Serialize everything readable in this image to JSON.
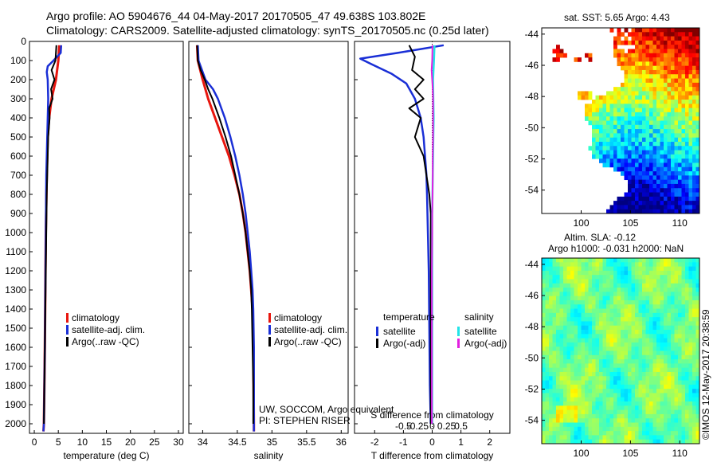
{
  "header": {
    "line1": "Argo profile: AO 5904676_44 04-May-2017 20170505_47 49.638S 103.802E",
    "line2": "Climatology: CARS2009. Satellite-adjusted climatology: synTS_20170505.nc (0.25d later)"
  },
  "colors": {
    "climatology": "#e8160e",
    "satellite": "#1a2fd6",
    "argo": "#000000",
    "sal_sat": "#22e4e8",
    "sal_argo": "#e21fe0"
  },
  "chart_data": [
    {
      "id": "temperature",
      "type": "line",
      "xlabel": "temperature (deg C)",
      "ylabel": "",
      "xlim": [
        -1,
        31
      ],
      "ylim": [
        2050,
        0
      ],
      "xticks": [
        "0",
        "5",
        "10",
        "15",
        "20",
        "25",
        "30"
      ],
      "xtick_values": [
        0,
        5,
        10,
        15,
        20,
        25,
        30
      ],
      "yticks": [
        "0",
        "100",
        "200",
        "300",
        "400",
        "500",
        "600",
        "700",
        "800",
        "900",
        "1000",
        "1100",
        "1200",
        "1300",
        "1400",
        "1500",
        "1600",
        "1700",
        "1800",
        "1900",
        "2000"
      ],
      "ytick_values": [
        0,
        100,
        200,
        300,
        400,
        500,
        600,
        700,
        800,
        900,
        1000,
        1100,
        1200,
        1300,
        1400,
        1500,
        1600,
        1700,
        1800,
        1900,
        2000
      ],
      "legend": [
        "climatology",
        "satellite-adj. clim.",
        "Argo(..raw -QC)"
      ],
      "series": [
        {
          "name": "climatology",
          "color_key": "climatology",
          "depth": [
            20,
            100,
            200,
            300,
            400,
            500,
            700,
            1000,
            1300,
            1600,
            2000,
            2040
          ],
          "values": [
            5.2,
            5.0,
            4.5,
            3.6,
            3.1,
            2.8,
            2.6,
            2.4,
            2.3,
            2.2,
            2.0,
            1.9
          ]
        },
        {
          "name": "satellite-adj. clim.",
          "color_key": "satellite",
          "depth": [
            20,
            60,
            100,
            130,
            160,
            200,
            300,
            500,
            700,
            1000,
            1300,
            1600,
            2000,
            2040
          ],
          "values": [
            5.6,
            5.5,
            4.0,
            2.8,
            2.6,
            2.8,
            2.9,
            2.7,
            2.5,
            2.4,
            2.3,
            2.2,
            2.0,
            1.9
          ]
        },
        {
          "name": "Argo(..raw -QC)",
          "color_key": "argo",
          "depth": [
            20,
            100,
            150,
            200,
            250,
            300,
            350,
            400,
            500,
            600,
            700,
            800,
            1000,
            1200,
            1400,
            1600,
            1800,
            2000
          ],
          "values": [
            4.6,
            4.4,
            3.6,
            4.2,
            3.5,
            3.8,
            3.1,
            3.2,
            2.9,
            2.8,
            2.7,
            2.6,
            2.5,
            2.4,
            2.3,
            2.2,
            2.1,
            2.0
          ]
        }
      ]
    },
    {
      "id": "salinity",
      "type": "line",
      "xlabel": "salinity",
      "xlim": [
        33.8,
        36.1
      ],
      "ylim": [
        2050,
        0
      ],
      "xticks": [
        "34",
        "34.5",
        "35",
        "35.5",
        "36"
      ],
      "xtick_values": [
        34,
        34.5,
        35,
        35.5,
        36
      ],
      "legend": [
        "climatology",
        "satellite-adj. clim.",
        "Argo(..raw -QC)"
      ],
      "series": [
        {
          "name": "climatology",
          "color_key": "climatology",
          "depth": [
            20,
            100,
            200,
            300,
            400,
            500,
            600,
            700,
            800,
            900,
            1000,
            1100,
            1200,
            1300,
            1400,
            1600,
            2000,
            2040
          ],
          "values": [
            33.92,
            33.93,
            34.0,
            34.08,
            34.18,
            34.28,
            34.38,
            34.46,
            34.53,
            34.58,
            34.62,
            34.65,
            34.68,
            34.7,
            34.72,
            34.73,
            34.74,
            34.74
          ]
        },
        {
          "name": "satellite-adj. clim.",
          "color_key": "satellite",
          "depth": [
            20,
            100,
            200,
            250,
            300,
            400,
            500,
            600,
            700,
            800,
            900,
            1000,
            1100,
            1200,
            1300,
            1400,
            1600,
            2000,
            2040
          ],
          "values": [
            33.93,
            33.94,
            34.04,
            34.15,
            34.22,
            34.32,
            34.4,
            34.47,
            34.53,
            34.58,
            34.62,
            34.65,
            34.68,
            34.7,
            34.72,
            34.73,
            34.74,
            34.74,
            34.74
          ]
        },
        {
          "name": "Argo(..raw -QC)",
          "color_key": "argo",
          "depth": [
            20,
            100,
            150,
            200,
            250,
            300,
            400,
            500,
            600,
            700,
            800,
            900,
            1000,
            1100,
            1200,
            1300,
            1400,
            1600,
            1800,
            2000
          ],
          "values": [
            33.92,
            33.93,
            33.97,
            34.03,
            34.08,
            34.14,
            34.24,
            34.33,
            34.41,
            34.47,
            34.53,
            34.58,
            34.62,
            34.65,
            34.68,
            34.7,
            34.71,
            34.72,
            34.73,
            34.73
          ]
        }
      ]
    },
    {
      "id": "differences",
      "type": "line",
      "xlabel": "T difference from climatology",
      "top_xlabel": "S difference from climatology",
      "xlim": [
        -2.7,
        2.7
      ],
      "ylim": [
        2050,
        0
      ],
      "xticks": [
        "-2",
        "-1",
        "0",
        "1",
        "2"
      ],
      "xtick_values": [
        -2,
        -1,
        0,
        1,
        2
      ],
      "top_xticks": [
        "-0.5",
        "-0.25",
        "0",
        "0.25",
        "0.5"
      ],
      "legend_titles": [
        "temperature",
        "salinity"
      ],
      "legend": [
        "satellite",
        "Argo(-adj)",
        "satellite",
        "Argo(-adj)"
      ],
      "series": [
        {
          "name": "T satellite",
          "color_key": "satellite",
          "depth": [
            20,
            60,
            90,
            120,
            170,
            220,
            300,
            400,
            500,
            600,
            700,
            800,
            1000,
            1200,
            1500,
            1800,
            2000
          ],
          "values": [
            0.4,
            -1.2,
            -2.5,
            -2.1,
            -1.4,
            -0.9,
            -0.6,
            -0.4,
            -0.3,
            -0.25,
            -0.2,
            -0.18,
            -0.15,
            -0.12,
            -0.1,
            -0.08,
            -0.05
          ]
        },
        {
          "name": "T Argo(-adj)",
          "color_key": "argo",
          "depth": [
            20,
            80,
            150,
            200,
            250,
            300,
            350,
            400,
            500,
            600,
            700,
            800,
            900,
            1000,
            1200,
            1500,
            1800,
            2000
          ],
          "values": [
            -0.8,
            -0.6,
            -0.7,
            -0.3,
            -0.6,
            -0.3,
            -0.8,
            -0.4,
            -0.6,
            -0.3,
            -0.2,
            -0.1,
            -0.05,
            -0.05,
            -0.05,
            -0.05,
            -0.05,
            -0.05
          ]
        },
        {
          "name": "S satellite",
          "color_key": "sal_sat",
          "depth": [
            20,
            100,
            200,
            300,
            400,
            500,
            600,
            700,
            800,
            900,
            1000,
            1200,
            1500,
            2000
          ],
          "values": [
            0.08,
            0.06,
            0.03,
            0.04,
            0.05,
            0.04,
            0.03,
            0.02,
            0.01,
            0.0,
            0.0,
            0.0,
            0.0,
            0.0
          ]
        },
        {
          "name": "S Argo(-adj)",
          "color_key": "sal_argo",
          "depth": [
            20,
            100,
            150,
            200,
            250,
            300,
            400,
            500,
            600,
            700,
            800,
            900,
            1000,
            1200,
            1500,
            2000
          ],
          "values": [
            0.01,
            0.0,
            -0.02,
            0.0,
            0.02,
            0.03,
            0.03,
            0.03,
            0.02,
            0.02,
            0.01,
            0.0,
            0.0,
            -0.01,
            -0.01,
            -0.01
          ]
        }
      ]
    }
  ],
  "annotation": {
    "line1": "UW, SOCCOM, Argo equivalent",
    "line2": "PI: STEPHEN RISER"
  },
  "map_sst": {
    "title": "sat. SST: 5.65 Argo: 4.43",
    "yticks": [
      "-44",
      "-46",
      "-48",
      "-50",
      "-52",
      "-54"
    ],
    "ytick_values": [
      -44,
      -46,
      -48,
      -50,
      -52,
      -54
    ],
    "xticks": [
      "100",
      "105",
      "110"
    ],
    "xtick_values": [
      100,
      105,
      110
    ],
    "xlim": [
      96,
      112
    ],
    "ylim": [
      -55.5,
      -43.6
    ]
  },
  "map_sla": {
    "title1": "Altim. SLA: -0.12",
    "title2": "Argo h1000: -0.031 h2000: NaN",
    "yticks": [
      "-44",
      "-46",
      "-48",
      "-50",
      "-52",
      "-54"
    ],
    "ytick_values": [
      -44,
      -46,
      -48,
      -50,
      -52,
      -54
    ],
    "xticks": [
      "100",
      "105",
      "110"
    ],
    "xtick_values": [
      100,
      105,
      110
    ],
    "xlim": [
      96,
      112
    ],
    "ylim": [
      -55.5,
      -43.6
    ]
  },
  "stamp": "©IMOS 12-May-2017 20:38:59"
}
